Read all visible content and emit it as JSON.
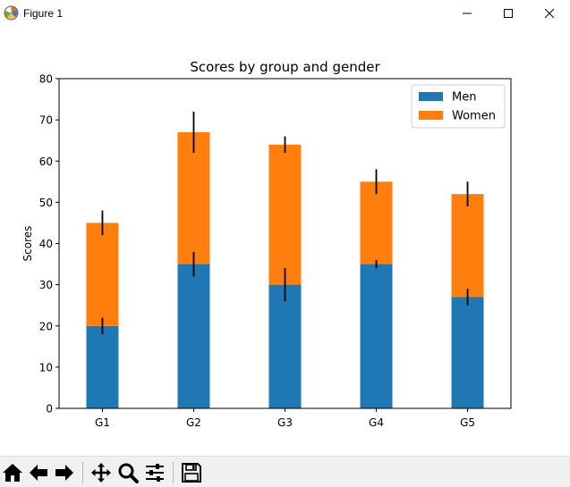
{
  "window": {
    "title": "Figure 1",
    "icons": {
      "app": "matplotlib-logo-icon",
      "minimize": "minimize-icon",
      "maximize": "maximize-icon",
      "close": "close-icon"
    }
  },
  "toolbar": {
    "buttons": [
      {
        "name": "home-button",
        "icon": "home-icon"
      },
      {
        "name": "back-button",
        "icon": "arrow-left-icon"
      },
      {
        "name": "forward-button",
        "icon": "arrow-right-icon"
      },
      {
        "name": "pan-button",
        "icon": "move-icon"
      },
      {
        "name": "zoom-button",
        "icon": "zoom-icon"
      },
      {
        "name": "configure-subplots-button",
        "icon": "sliders-icon"
      },
      {
        "name": "save-button",
        "icon": "save-icon"
      }
    ]
  },
  "chart_data": {
    "type": "bar",
    "stacked": true,
    "title": "Scores by group and gender",
    "xlabel": "",
    "ylabel": "Scores",
    "categories": [
      "G1",
      "G2",
      "G3",
      "G4",
      "G5"
    ],
    "ylim": [
      0,
      80
    ],
    "yticks": [
      0,
      10,
      20,
      30,
      40,
      50,
      60,
      70,
      80
    ],
    "series": [
      {
        "name": "Men",
        "values": [
          20,
          35,
          30,
          35,
          27
        ],
        "errors": [
          2,
          3,
          4,
          1,
          2
        ],
        "color": "#1f77b4"
      },
      {
        "name": "Women",
        "values": [
          25,
          32,
          34,
          20,
          25
        ],
        "errors": [
          3,
          5,
          2,
          3,
          3
        ],
        "color": "#ff7f0e"
      }
    ],
    "legend_position": "top-right",
    "grid": false
  }
}
